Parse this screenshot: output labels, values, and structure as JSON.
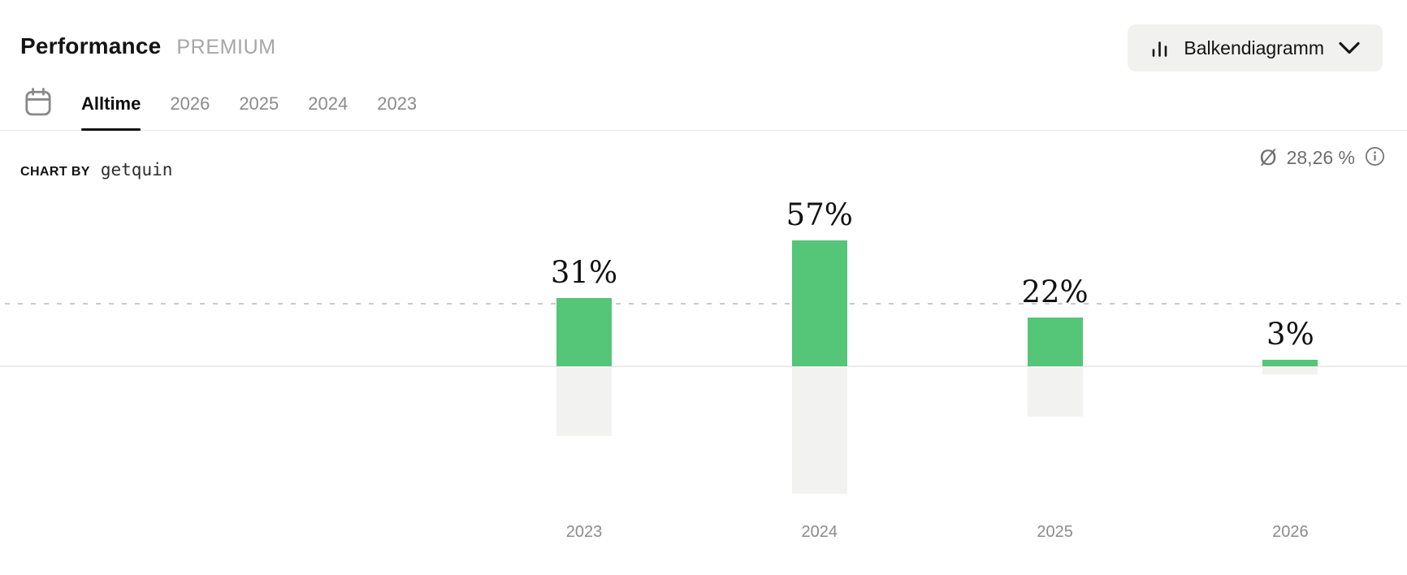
{
  "header": {
    "title": "Performance",
    "premium_badge": "PREMIUM",
    "chart_type_button": {
      "label": "Balkendiagramm"
    }
  },
  "tabs": {
    "items": [
      {
        "label": "Alltime",
        "active": true
      },
      {
        "label": "2026",
        "active": false
      },
      {
        "label": "2025",
        "active": false
      },
      {
        "label": "2024",
        "active": false
      },
      {
        "label": "2023",
        "active": false
      }
    ]
  },
  "chart_header": {
    "chart_by_label": "CHART BY",
    "brand": "getquin",
    "average_symbol": "Ø",
    "average_value": "28,26 %"
  },
  "chart_data": {
    "type": "bar",
    "categories": [
      "2023",
      "2024",
      "2025",
      "2026"
    ],
    "values": [
      31,
      57,
      22,
      3
    ],
    "value_labels": [
      "31%",
      "57%",
      "22%",
      "3%"
    ],
    "unit": "%",
    "average": 28.26,
    "average_display": "Ø 28,26 %",
    "average_line_style": "dotted horizontal line at average value",
    "mirrored_gray_reflection_below_baseline": true,
    "legend_position": "none",
    "bar_color": "#55c578",
    "mirror_bar_color": "#f2f2f1",
    "baseline_color": "#ececea",
    "average_line_color": "#c9c9c9",
    "value_label_color": "#111111",
    "category_label_color": "#8b8b8b"
  },
  "icons": {
    "calendar": "calendar-icon",
    "bar_chart": "bar-chart-icon",
    "chevron_down": "chevron-down-icon",
    "average_symbol": "diameter-sign",
    "info": "info-icon"
  },
  "colors": {
    "accent_green": "#55c578",
    "button_bg": "#f1f1ef",
    "muted_text": "#8b8b8b",
    "premium_text": "#a6a6a6",
    "avg_text": "#6e6e6e"
  }
}
